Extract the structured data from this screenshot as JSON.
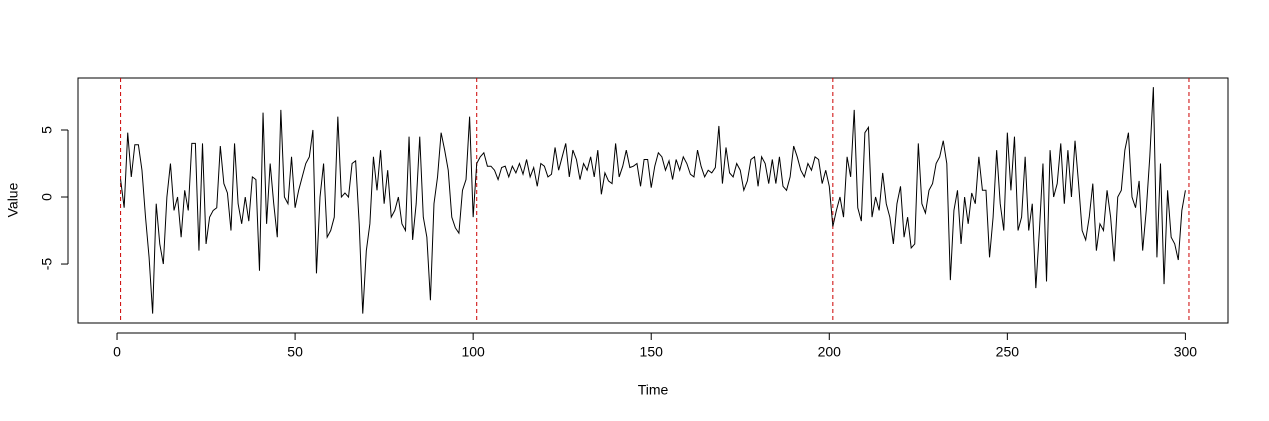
{
  "chart_data": {
    "type": "line",
    "x_label": "Time",
    "y_label": "Value",
    "x": [
      1,
      2,
      3,
      4,
      5,
      6,
      7,
      8,
      9,
      10,
      11,
      12,
      13,
      14,
      15,
      16,
      17,
      18,
      19,
      20,
      21,
      22,
      23,
      24,
      25,
      26,
      27,
      28,
      29,
      30,
      31,
      32,
      33,
      34,
      35,
      36,
      37,
      38,
      39,
      40,
      41,
      42,
      43,
      44,
      45,
      46,
      47,
      48,
      49,
      50,
      51,
      52,
      53,
      54,
      55,
      56,
      57,
      58,
      59,
      60,
      61,
      62,
      63,
      64,
      65,
      66,
      67,
      68,
      69,
      70,
      71,
      72,
      73,
      74,
      75,
      76,
      77,
      78,
      79,
      80,
      81,
      82,
      83,
      84,
      85,
      86,
      87,
      88,
      89,
      90,
      91,
      92,
      93,
      94,
      95,
      96,
      97,
      98,
      99,
      100,
      101,
      102,
      103,
      104,
      105,
      106,
      107,
      108,
      109,
      110,
      111,
      112,
      113,
      114,
      115,
      116,
      117,
      118,
      119,
      120,
      121,
      122,
      123,
      124,
      125,
      126,
      127,
      128,
      129,
      130,
      131,
      132,
      133,
      134,
      135,
      136,
      137,
      138,
      139,
      140,
      141,
      142,
      143,
      144,
      145,
      146,
      147,
      148,
      149,
      150,
      151,
      152,
      153,
      154,
      155,
      156,
      157,
      158,
      159,
      160,
      161,
      162,
      163,
      164,
      165,
      166,
      167,
      168,
      169,
      170,
      171,
      172,
      173,
      174,
      175,
      176,
      177,
      178,
      179,
      180,
      181,
      182,
      183,
      184,
      185,
      186,
      187,
      188,
      189,
      190,
      191,
      192,
      193,
      194,
      195,
      196,
      197,
      198,
      199,
      200,
      201,
      202,
      203,
      204,
      205,
      206,
      207,
      208,
      209,
      210,
      211,
      212,
      213,
      214,
      215,
      216,
      217,
      218,
      219,
      220,
      221,
      222,
      223,
      224,
      225,
      226,
      227,
      228,
      229,
      230,
      231,
      232,
      233,
      234,
      235,
      236,
      237,
      238,
      239,
      240,
      241,
      242,
      243,
      244,
      245,
      246,
      247,
      248,
      249,
      250,
      251,
      252,
      253,
      254,
      255,
      256,
      257,
      258,
      259,
      260,
      261,
      262,
      263,
      264,
      265,
      266,
      267,
      268,
      269,
      270,
      271,
      272,
      273,
      274,
      275,
      276,
      277,
      278,
      279,
      280,
      281,
      282,
      283,
      284,
      285,
      286,
      287,
      288,
      289,
      290,
      291,
      292,
      293,
      294,
      295,
      296,
      297,
      298,
      299,
      300
    ],
    "values": [
      1.3,
      -0.8,
      4.8,
      1.5,
      3.9,
      3.9,
      2.0,
      -1.5,
      -4.5,
      -8.7,
      -0.5,
      -3.5,
      -5.0,
      0.0,
      2.5,
      -1.0,
      0.0,
      -3.0,
      0.5,
      -1.0,
      4.0,
      4.0,
      -4.0,
      4.0,
      -3.5,
      -1.5,
      -1.0,
      -0.8,
      3.8,
      1.0,
      0.3,
      -2.5,
      4.0,
      -0.5,
      -2.0,
      0.0,
      -1.8,
      1.5,
      1.3,
      -5.5,
      6.3,
      -2.0,
      2.5,
      -0.5,
      -3.0,
      6.5,
      0.0,
      -0.5,
      3.0,
      -0.8,
      0.5,
      1.5,
      2.5,
      3.0,
      5.0,
      -5.7,
      0.0,
      2.5,
      -3.0,
      -2.5,
      -1.5,
      6.0,
      0.0,
      0.3,
      0.0,
      2.5,
      2.7,
      -2.0,
      -8.7,
      -4.0,
      -2.0,
      3.0,
      0.5,
      3.5,
      -0.5,
      2.0,
      -1.5,
      -1.0,
      0.0,
      -2.0,
      -2.5,
      4.5,
      -3.2,
      -0.5,
      4.5,
      -1.5,
      -3.0,
      -7.7,
      -0.5,
      1.5,
      4.8,
      3.5,
      2.0,
      -1.5,
      -2.3,
      -2.7,
      0.5,
      1.3,
      6.0,
      -1.5,
      2.5,
      3.0,
      3.3,
      2.3,
      2.3,
      2.0,
      1.3,
      2.2,
      2.3,
      1.5,
      2.3,
      1.8,
      2.5,
      1.7,
      2.8,
      1.5,
      2.2,
      0.8,
      2.5,
      2.3,
      1.5,
      1.7,
      3.7,
      2.0,
      3.0,
      4.0,
      1.5,
      3.5,
      2.8,
      1.3,
      2.5,
      2.0,
      3.0,
      1.5,
      3.5,
      0.2,
      1.8,
      1.2,
      1.0,
      4.0,
      1.5,
      2.3,
      3.5,
      2.2,
      2.3,
      2.5,
      0.8,
      2.8,
      2.8,
      0.7,
      2.3,
      3.3,
      3.0,
      2.0,
      2.7,
      1.3,
      2.8,
      2.0,
      3.0,
      2.5,
      1.7,
      1.5,
      3.5,
      2.3,
      1.5,
      2.0,
      1.8,
      2.2,
      5.3,
      1.0,
      3.7,
      1.8,
      1.5,
      2.5,
      2.0,
      0.5,
      1.2,
      2.8,
      3.0,
      0.8,
      3.0,
      2.5,
      1.0,
      2.8,
      1.0,
      3.0,
      0.8,
      0.5,
      1.5,
      3.8,
      3.0,
      2.0,
      1.5,
      2.5,
      2.0,
      3.0,
      2.8,
      1.0,
      2.0,
      0.8,
      -2.2,
      -1.0,
      0.0,
      -1.5,
      3.0,
      1.5,
      6.5,
      -0.8,
      -1.8,
      4.8,
      5.2,
      -1.5,
      0.0,
      -1.0,
      1.8,
      -0.5,
      -1.5,
      -3.5,
      -0.5,
      0.8,
      -3.0,
      -1.5,
      -3.8,
      -3.5,
      4.0,
      -0.5,
      -1.2,
      0.5,
      1.0,
      2.5,
      3.0,
      4.2,
      2.5,
      -6.2,
      -1.0,
      0.5,
      -3.5,
      0.0,
      -2.0,
      0.3,
      -0.5,
      3.0,
      0.5,
      0.5,
      -4.5,
      -1.5,
      3.5,
      -0.5,
      -2.5,
      4.8,
      0.5,
      4.5,
      -2.5,
      -1.5,
      3.0,
      -2.5,
      -0.5,
      -6.8,
      -2.5,
      2.5,
      -6.3,
      3.5,
      0.0,
      1.0,
      4.0,
      -0.5,
      3.5,
      0.0,
      4.2,
      1.0,
      -2.5,
      -3.2,
      -1.5,
      1.0,
      -4.0,
      -2.0,
      -2.5,
      0.5,
      -1.5,
      -4.8,
      0.0,
      0.5,
      3.5,
      4.8,
      0.0,
      -0.8,
      1.2,
      -4.0,
      -1.0,
      3.0,
      8.2,
      -4.5,
      2.5,
      -6.5,
      0.5,
      -3.0,
      -3.5,
      -4.7,
      -1.0,
      0.5
    ],
    "color": "#000000",
    "vlines": [
      1,
      101,
      201,
      301
    ],
    "vline_color": "#cc0000",
    "xlim": [
      -10.96,
      311.96
    ],
    "xticks": [
      0,
      50,
      100,
      150,
      200,
      250,
      300
    ],
    "ylim": [
      -9.4,
      8.88
    ],
    "yticks": [
      -5,
      0,
      5
    ]
  }
}
